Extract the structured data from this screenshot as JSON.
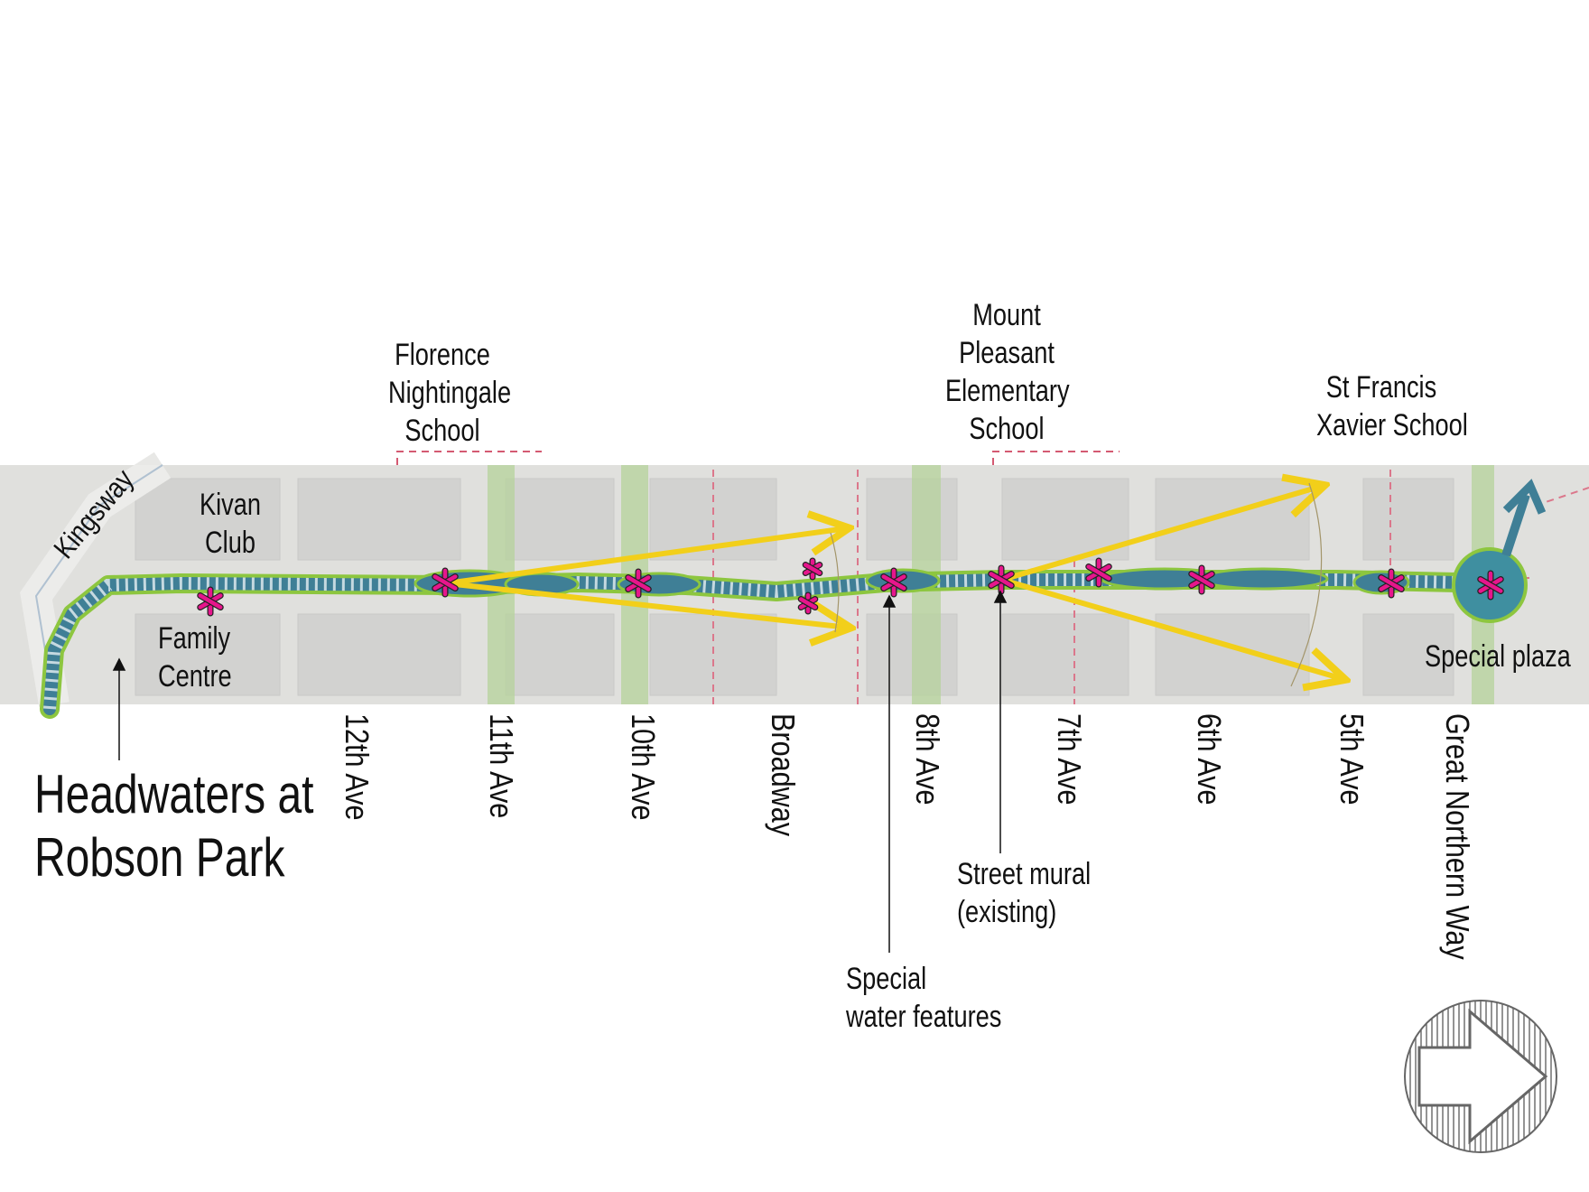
{
  "title": {
    "line1": "Headwaters at",
    "line2": "Robson Park"
  },
  "street_kingsway": "Kingsway",
  "cross_streets": [
    "12th Ave",
    "11th Ave",
    "10th Ave",
    "Broadway",
    "8th Ave",
    "7th Ave",
    "6th Ave",
    "5th Ave",
    "Great Northern Way"
  ],
  "landmarks": {
    "kivan": [
      "Kivan",
      "Club"
    ],
    "family": [
      "Family",
      "Centre"
    ],
    "florence": [
      "Florence",
      "Nightingale",
      "School"
    ],
    "mount_pleasant": [
      "Mount",
      "Pleasant",
      "Elementary",
      "School"
    ],
    "st_francis": [
      "St Francis",
      "Xavier School"
    ],
    "special_plaza": "Special plaza"
  },
  "annotations": {
    "water": [
      "Special",
      "water features"
    ],
    "mural": [
      "Street mural",
      "(existing)"
    ]
  },
  "colors": {
    "path": "#3f7f96",
    "path_edge": "#8dc63f",
    "marker": "#e6168c",
    "arrow": "#f2cf1a",
    "map_bg": "#d9d9d6"
  },
  "icons": [
    "north-arrow-icon"
  ]
}
